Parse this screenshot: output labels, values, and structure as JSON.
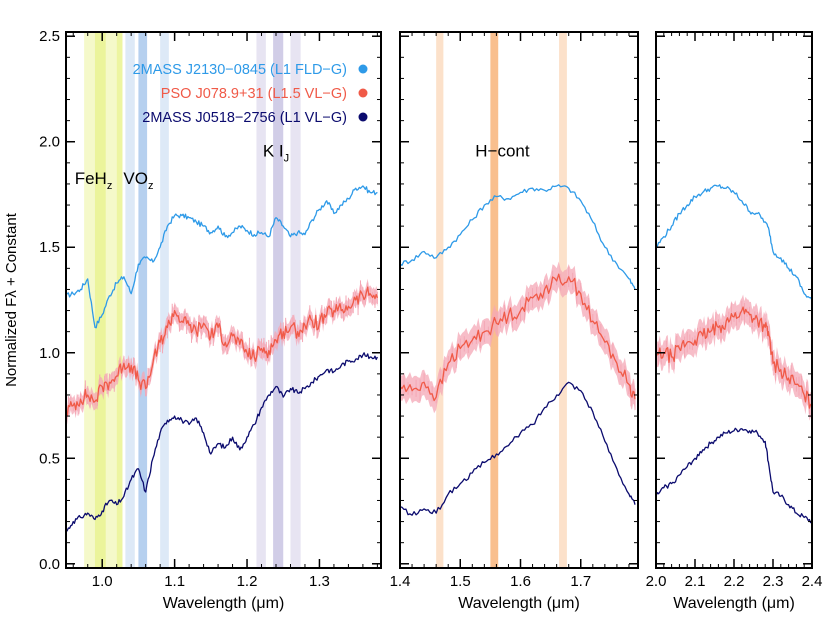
{
  "ylabel": "Normalized Fλ + Constant",
  "colors": {
    "field": "#2e9ae8",
    "pso": "#f05a48",
    "pso_err": "#f4a7b5",
    "vlg": "#0b0b6e",
    "feh": "#e8f28a",
    "vo": "#a9c8ec",
    "ki": "#c9c4e3",
    "hcont": "#f8b47a"
  },
  "chart_data": [
    {
      "type": "line",
      "panel": "J",
      "xlabel": "Wavelength (μm)",
      "xlim": [
        0.95,
        1.385
      ],
      "ylim": [
        -0.02,
        2.52
      ],
      "xticks": [
        1.0,
        1.1,
        1.2,
        1.3
      ],
      "xtick_labels": [
        "1.0",
        "1.1",
        "1.2",
        "1.3"
      ],
      "yticks": [
        0.0,
        0.5,
        1.0,
        1.5,
        2.0,
        2.5
      ],
      "ytick_labels": [
        "0.0",
        "0.5",
        "1.0",
        "1.5",
        "2.0",
        "2.5"
      ],
      "bands": [
        {
          "range": [
            0.975,
            0.99
          ],
          "color": "feh",
          "opacity": 0.45
        },
        {
          "range": [
            0.99,
            1.005
          ],
          "color": "feh",
          "opacity": 0.85
        },
        {
          "range": [
            1.005,
            1.02
          ],
          "color": "feh",
          "opacity": 0.45
        },
        {
          "range": [
            1.02,
            1.028
          ],
          "color": "feh",
          "opacity": 0.8
        },
        {
          "range": [
            1.032,
            1.045
          ],
          "color": "vo",
          "opacity": 0.4
        },
        {
          "range": [
            1.05,
            1.062
          ],
          "color": "vo",
          "opacity": 0.85
        },
        {
          "range": [
            1.08,
            1.092
          ],
          "color": "vo",
          "opacity": 0.4
        },
        {
          "range": [
            1.213,
            1.226
          ],
          "color": "ki",
          "opacity": 0.45
        },
        {
          "range": [
            1.236,
            1.25
          ],
          "color": "ki",
          "opacity": 0.85
        },
        {
          "range": [
            1.26,
            1.274
          ],
          "color": "ki",
          "opacity": 0.45
        }
      ],
      "annotations": [
        {
          "base": "FeH",
          "sub": "z",
          "x": 0.988,
          "y": 1.8
        },
        {
          "base": "VO",
          "sub": "z",
          "x": 1.05,
          "y": 1.8
        },
        {
          "base": "K I",
          "sub": "J",
          "x": 1.24,
          "y": 1.93
        }
      ],
      "legend": {
        "position": "top-right",
        "entries": [
          {
            "label": "2MASS J2130−0845 (L1 FLD−G)",
            "color": "field"
          },
          {
            "label": "PSO J078.9+31 (L1.5 VL−G)",
            "color": "pso"
          },
          {
            "label": "2MASS J0518−2756 (L1 VL−G)",
            "color": "vlg"
          }
        ]
      },
      "series": [
        {
          "name": "2MASS J2130−0845 (L1 FLD−G)",
          "color": "field",
          "x": [
            0.95,
            0.96,
            0.97,
            0.98,
            0.99,
            1.0,
            1.01,
            1.02,
            1.03,
            1.04,
            1.05,
            1.06,
            1.07,
            1.08,
            1.09,
            1.1,
            1.11,
            1.12,
            1.13,
            1.14,
            1.15,
            1.16,
            1.17,
            1.18,
            1.19,
            1.2,
            1.21,
            1.22,
            1.23,
            1.24,
            1.25,
            1.26,
            1.27,
            1.28,
            1.29,
            1.3,
            1.31,
            1.32,
            1.33,
            1.34,
            1.35,
            1.36,
            1.37,
            1.38
          ],
          "y": [
            1.27,
            1.28,
            1.3,
            1.35,
            1.12,
            1.18,
            1.27,
            1.33,
            1.36,
            1.28,
            1.42,
            1.45,
            1.43,
            1.5,
            1.6,
            1.65,
            1.65,
            1.64,
            1.62,
            1.6,
            1.57,
            1.6,
            1.55,
            1.57,
            1.6,
            1.58,
            1.56,
            1.57,
            1.55,
            1.64,
            1.6,
            1.55,
            1.57,
            1.56,
            1.63,
            1.68,
            1.72,
            1.66,
            1.7,
            1.73,
            1.78,
            1.79,
            1.76,
            1.76
          ]
        },
        {
          "name": "PSO J078.9+31 (L1.5 VL−G)",
          "color": "pso",
          "err": 0.04,
          "x": [
            0.95,
            0.96,
            0.97,
            0.98,
            0.99,
            1.0,
            1.01,
            1.02,
            1.03,
            1.04,
            1.05,
            1.06,
            1.07,
            1.08,
            1.09,
            1.1,
            1.11,
            1.12,
            1.13,
            1.14,
            1.15,
            1.16,
            1.17,
            1.18,
            1.19,
            1.2,
            1.21,
            1.22,
            1.23,
            1.24,
            1.25,
            1.26,
            1.27,
            1.28,
            1.29,
            1.3,
            1.31,
            1.32,
            1.33,
            1.34,
            1.35,
            1.36,
            1.37,
            1.38
          ],
          "y": [
            0.72,
            0.75,
            0.78,
            0.8,
            0.77,
            0.84,
            0.86,
            0.89,
            0.95,
            0.94,
            0.87,
            0.83,
            0.95,
            1.05,
            1.12,
            1.2,
            1.15,
            1.13,
            1.1,
            1.14,
            1.08,
            1.12,
            1.05,
            1.08,
            1.04,
            1.0,
            0.98,
            1.02,
            1.01,
            1.06,
            1.1,
            1.12,
            1.1,
            1.13,
            1.15,
            1.14,
            1.18,
            1.2,
            1.2,
            1.22,
            1.25,
            1.27,
            1.28,
            1.26
          ]
        },
        {
          "name": "2MASS J0518−2756 (L1 VL−G)",
          "color": "vlg",
          "x": [
            0.95,
            0.96,
            0.97,
            0.98,
            0.99,
            1.0,
            1.01,
            1.02,
            1.03,
            1.04,
            1.05,
            1.06,
            1.07,
            1.08,
            1.09,
            1.1,
            1.11,
            1.12,
            1.13,
            1.14,
            1.15,
            1.16,
            1.17,
            1.18,
            1.19,
            1.2,
            1.21,
            1.22,
            1.23,
            1.24,
            1.25,
            1.26,
            1.27,
            1.28,
            1.29,
            1.3,
            1.31,
            1.32,
            1.33,
            1.34,
            1.35,
            1.36,
            1.37,
            1.38
          ],
          "y": [
            0.15,
            0.2,
            0.22,
            0.24,
            0.21,
            0.25,
            0.3,
            0.28,
            0.32,
            0.4,
            0.45,
            0.34,
            0.5,
            0.62,
            0.68,
            0.7,
            0.68,
            0.66,
            0.69,
            0.62,
            0.52,
            0.57,
            0.55,
            0.6,
            0.54,
            0.6,
            0.66,
            0.74,
            0.8,
            0.84,
            0.79,
            0.83,
            0.81,
            0.83,
            0.86,
            0.89,
            0.92,
            0.91,
            0.94,
            0.96,
            0.97,
            0.99,
            0.98,
            0.98
          ]
        }
      ]
    },
    {
      "type": "line",
      "panel": "H",
      "xlabel": "Wavelength (μm)",
      "xlim": [
        1.4,
        1.795
      ],
      "ylim": [
        -0.02,
        2.52
      ],
      "xticks": [
        1.4,
        1.5,
        1.6,
        1.7
      ],
      "xtick_labels": [
        "1.4",
        "1.5",
        "1.6",
        "1.7"
      ],
      "bands": [
        {
          "range": [
            1.46,
            1.472
          ],
          "color": "hcont",
          "opacity": 0.4
        },
        {
          "range": [
            1.55,
            1.563
          ],
          "color": "hcont",
          "opacity": 0.85
        },
        {
          "range": [
            1.664,
            1.677
          ],
          "color": "hcont",
          "opacity": 0.4
        }
      ],
      "annotations": [
        {
          "base": "H−cont",
          "sub": "",
          "x": 1.57,
          "y": 1.93
        }
      ],
      "series": [
        {
          "name": "2MASS J2130−0845 (L1 FLD−G)",
          "color": "field",
          "x": [
            1.4,
            1.42,
            1.44,
            1.46,
            1.48,
            1.5,
            1.52,
            1.54,
            1.56,
            1.58,
            1.6,
            1.62,
            1.64,
            1.66,
            1.68,
            1.7,
            1.72,
            1.74,
            1.76,
            1.78,
            1.79
          ],
          "y": [
            1.42,
            1.44,
            1.48,
            1.45,
            1.5,
            1.56,
            1.63,
            1.7,
            1.74,
            1.73,
            1.76,
            1.78,
            1.77,
            1.79,
            1.78,
            1.72,
            1.62,
            1.5,
            1.42,
            1.35,
            1.3
          ]
        },
        {
          "name": "PSO J078.9+31 (L1.5 VL−G)",
          "color": "pso",
          "err": 0.06,
          "x": [
            1.4,
            1.42,
            1.44,
            1.46,
            1.48,
            1.5,
            1.52,
            1.54,
            1.56,
            1.58,
            1.6,
            1.62,
            1.64,
            1.66,
            1.68,
            1.7,
            1.72,
            1.74,
            1.76,
            1.78,
            1.79
          ],
          "y": [
            0.84,
            0.82,
            0.86,
            0.79,
            0.95,
            1.02,
            1.06,
            1.1,
            1.14,
            1.18,
            1.2,
            1.26,
            1.3,
            1.34,
            1.36,
            1.28,
            1.15,
            1.05,
            0.95,
            0.85,
            0.78
          ]
        },
        {
          "name": "2MASS J0518−2756 (L1 VL−G)",
          "color": "vlg",
          "x": [
            1.4,
            1.42,
            1.44,
            1.46,
            1.48,
            1.5,
            1.52,
            1.54,
            1.56,
            1.58,
            1.6,
            1.62,
            1.64,
            1.66,
            1.68,
            1.7,
            1.72,
            1.74,
            1.76,
            1.78,
            1.79
          ],
          "y": [
            0.27,
            0.23,
            0.26,
            0.24,
            0.33,
            0.38,
            0.43,
            0.48,
            0.52,
            0.56,
            0.62,
            0.66,
            0.74,
            0.8,
            0.86,
            0.82,
            0.72,
            0.58,
            0.45,
            0.33,
            0.28
          ]
        }
      ]
    },
    {
      "type": "line",
      "panel": "K",
      "xlabel": "Wavelength (μm)",
      "xlim": [
        2.0,
        2.4
      ],
      "ylim": [
        -0.02,
        2.52
      ],
      "xticks": [
        2.0,
        2.1,
        2.2,
        2.3,
        2.4
      ],
      "xtick_labels": [
        "2.0",
        "2.1",
        "2.2",
        "2.3",
        "2.4"
      ],
      "bands": [],
      "annotations": [],
      "series": [
        {
          "name": "2MASS J2130−0845 (L1 FLD−G)",
          "color": "field",
          "x": [
            2.0,
            2.02,
            2.04,
            2.06,
            2.08,
            2.1,
            2.12,
            2.14,
            2.16,
            2.18,
            2.2,
            2.22,
            2.24,
            2.26,
            2.28,
            2.29,
            2.3,
            2.32,
            2.34,
            2.36,
            2.38,
            2.4
          ],
          "y": [
            1.5,
            1.55,
            1.6,
            1.66,
            1.7,
            1.74,
            1.76,
            1.78,
            1.79,
            1.78,
            1.76,
            1.72,
            1.67,
            1.66,
            1.62,
            1.58,
            1.48,
            1.45,
            1.4,
            1.36,
            1.28,
            1.25
          ]
        },
        {
          "name": "PSO J078.9+31 (L1.5 VL−G)",
          "color": "pso",
          "err": 0.06,
          "x": [
            2.0,
            2.02,
            2.04,
            2.06,
            2.08,
            2.1,
            2.12,
            2.14,
            2.16,
            2.18,
            2.2,
            2.22,
            2.24,
            2.26,
            2.28,
            2.29,
            2.3,
            2.32,
            2.34,
            2.36,
            2.38,
            2.4
          ],
          "y": [
            0.98,
            1.0,
            0.98,
            1.02,
            1.05,
            1.06,
            1.08,
            1.1,
            1.12,
            1.15,
            1.17,
            1.2,
            1.18,
            1.16,
            1.12,
            1.08,
            0.95,
            0.92,
            0.88,
            0.85,
            0.8,
            0.75
          ]
        },
        {
          "name": "2MASS J0518−2756 (L1 VL−G)",
          "color": "vlg",
          "x": [
            2.0,
            2.02,
            2.04,
            2.06,
            2.08,
            2.1,
            2.12,
            2.14,
            2.16,
            2.18,
            2.2,
            2.22,
            2.24,
            2.26,
            2.28,
            2.29,
            2.3,
            2.32,
            2.34,
            2.36,
            2.38,
            2.4
          ],
          "y": [
            0.32,
            0.36,
            0.38,
            0.42,
            0.46,
            0.5,
            0.54,
            0.57,
            0.6,
            0.62,
            0.63,
            0.64,
            0.63,
            0.62,
            0.58,
            0.46,
            0.34,
            0.32,
            0.28,
            0.24,
            0.22,
            0.2
          ]
        }
      ]
    }
  ]
}
